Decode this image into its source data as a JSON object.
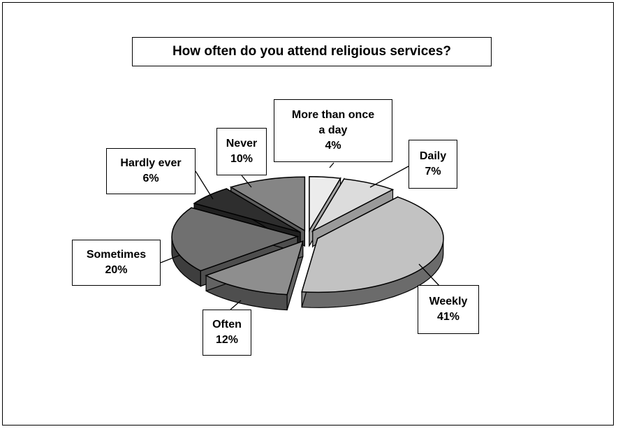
{
  "chart_data": {
    "type": "pie",
    "title": "How often do you attend religious services?",
    "slices": [
      {
        "label_lines": [
          "More than once",
          "a day"
        ],
        "value": 4,
        "value_label": "4%",
        "color": "#ececec"
      },
      {
        "label_lines": [
          "Daily"
        ],
        "value": 7,
        "value_label": "7%",
        "color": "#dcdcdc"
      },
      {
        "label_lines": [
          "Weekly"
        ],
        "value": 41,
        "value_label": "41%",
        "color": "#c2c2c2"
      },
      {
        "label_lines": [
          "Often"
        ],
        "value": 12,
        "value_label": "12%",
        "color": "#8e8e8e"
      },
      {
        "label_lines": [
          "Sometimes"
        ],
        "value": 20,
        "value_label": "20%",
        "color": "#707070"
      },
      {
        "label_lines": [
          "Hardly ever"
        ],
        "value": 6,
        "value_label": "6%",
        "color": "#2e2e2e"
      },
      {
        "label_lines": [
          "Never"
        ],
        "value": 10,
        "value_label": "10%",
        "color": "#858585"
      }
    ],
    "legend": "none",
    "style": "3d-exploded"
  }
}
